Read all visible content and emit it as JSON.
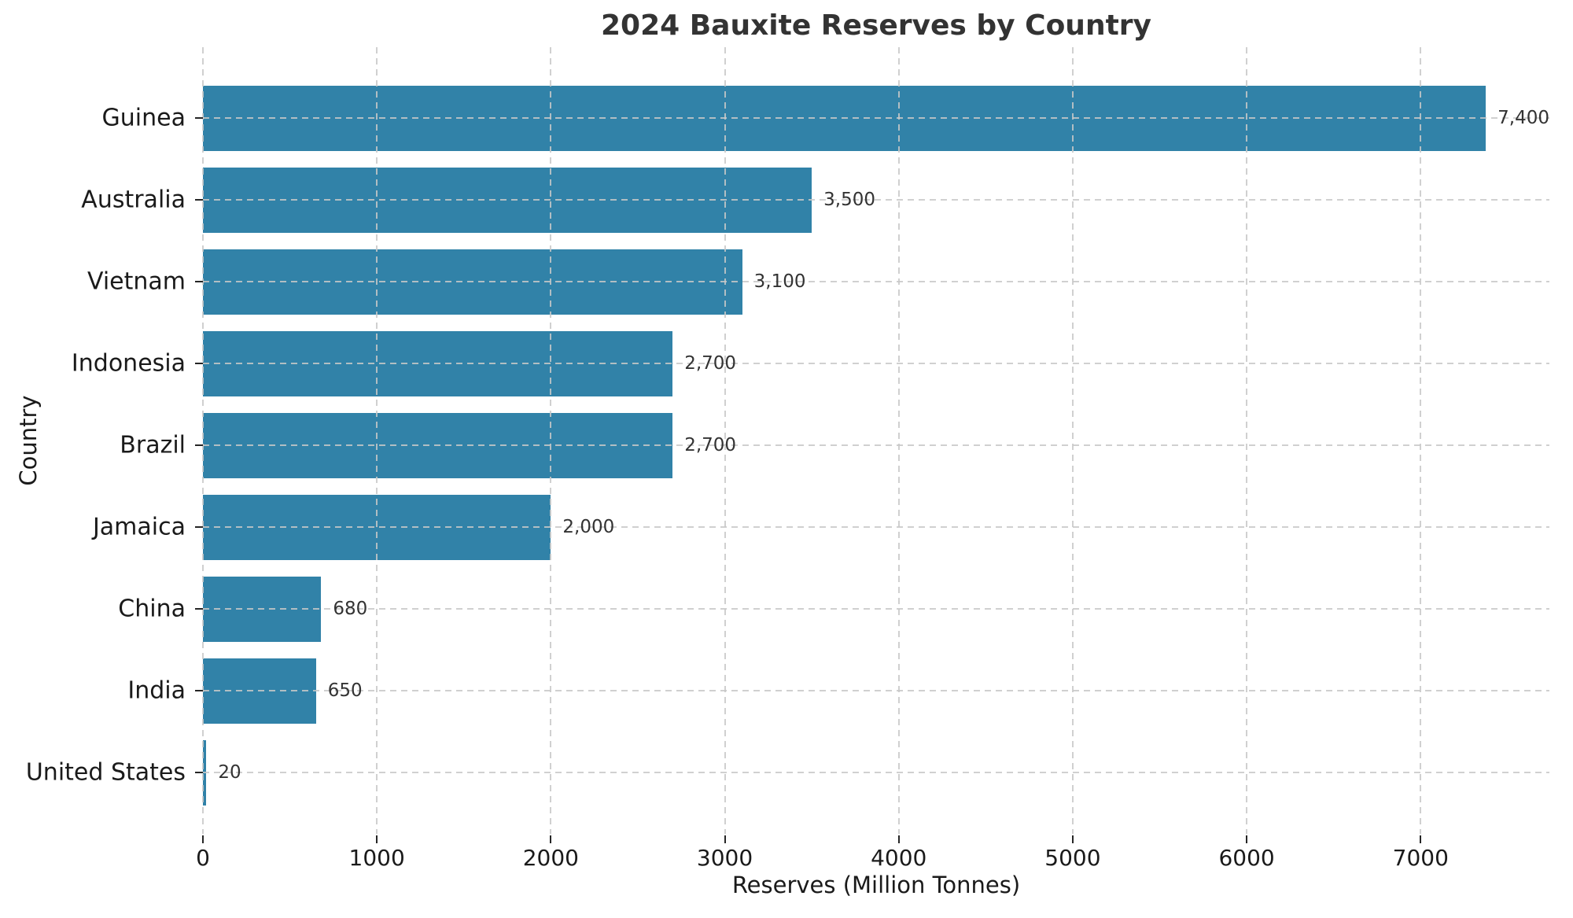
{
  "title": "2024 Bauxite Reserves by Country",
  "colors": {
    "bar": "#3182a8",
    "grid": "#c8c8c8",
    "text": "#1a1a1a",
    "value_text": "#333333",
    "title_text": "#333333"
  },
  "chart_data": {
    "type": "bar",
    "orientation": "horizontal",
    "title": "2024 Bauxite Reserves by Country",
    "xlabel": "Reserves (Million Tonnes)",
    "ylabel": "Country",
    "categories": [
      "Guinea",
      "Australia",
      "Vietnam",
      "Indonesia",
      "Brazil",
      "Jamaica",
      "China",
      "India",
      "United States"
    ],
    "values": [
      7400,
      3500,
      3100,
      2700,
      2700,
      2000,
      680,
      650,
      20
    ],
    "value_labels": [
      "7,400",
      "3,500",
      "3,100",
      "2,700",
      "2,700",
      "2,000",
      "680",
      "650",
      "20"
    ],
    "x_ticks": [
      0,
      1000,
      2000,
      3000,
      4000,
      5000,
      6000,
      7000
    ],
    "x_tick_labels": [
      "0",
      "1000",
      "2000",
      "3000",
      "4000",
      "5000",
      "6000",
      "7000"
    ],
    "xlim": [
      0,
      7740
    ],
    "grid": "dashed-both-axes",
    "legend": false
  }
}
